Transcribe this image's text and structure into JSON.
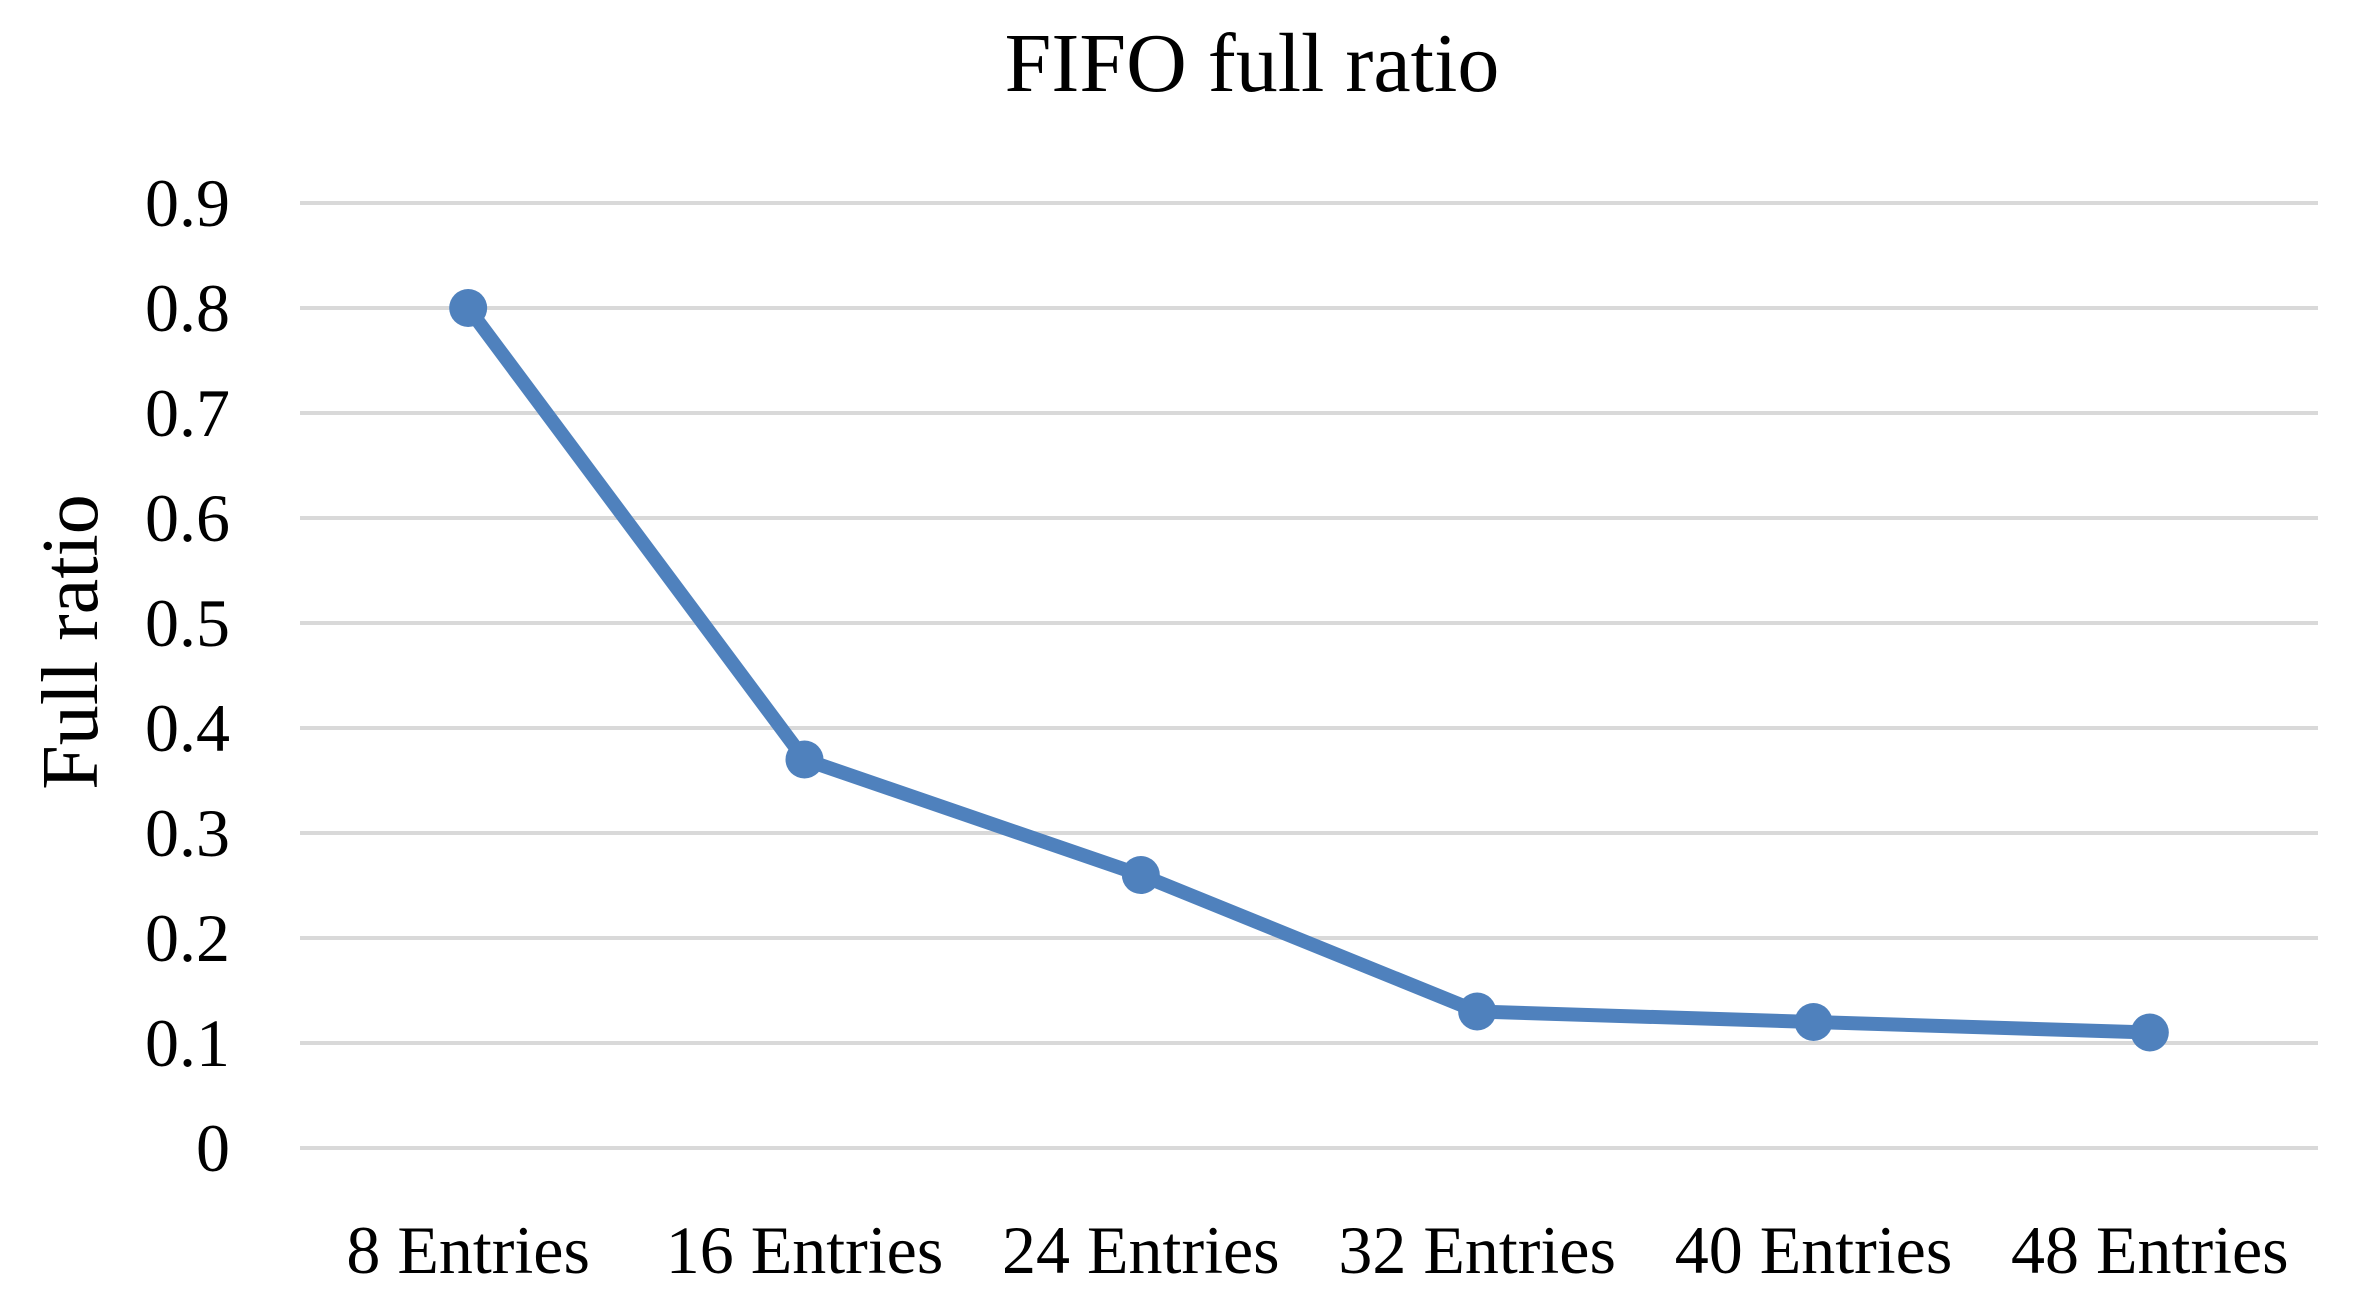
{
  "chart_data": {
    "type": "line",
    "title": "FIFO full ratio",
    "xlabel": "",
    "ylabel": "Full ratio",
    "categories": [
      "8 Entries",
      "16 Entries",
      "24 Entries",
      "32 Entries",
      "40 Entries",
      "48 Entries"
    ],
    "series": [
      {
        "name": "FIFO full ratio",
        "values": [
          0.8,
          0.37,
          0.26,
          0.13,
          0.12,
          0.11
        ]
      }
    ],
    "ylim": [
      0,
      0.9
    ],
    "ytick_step": 0.1,
    "ytick_labels": [
      "0",
      "0.1",
      "0.2",
      "0.3",
      "0.4",
      "0.5",
      "0.6",
      "0.7",
      "0.8",
      "0.9"
    ],
    "grid": "horizontal",
    "legend_position": "none",
    "colors": {
      "line": "#4F81BD",
      "marker": "#4F81BD",
      "gridline": "#D9D9D9",
      "text": "#000000",
      "background": "#FFFFFF"
    }
  }
}
